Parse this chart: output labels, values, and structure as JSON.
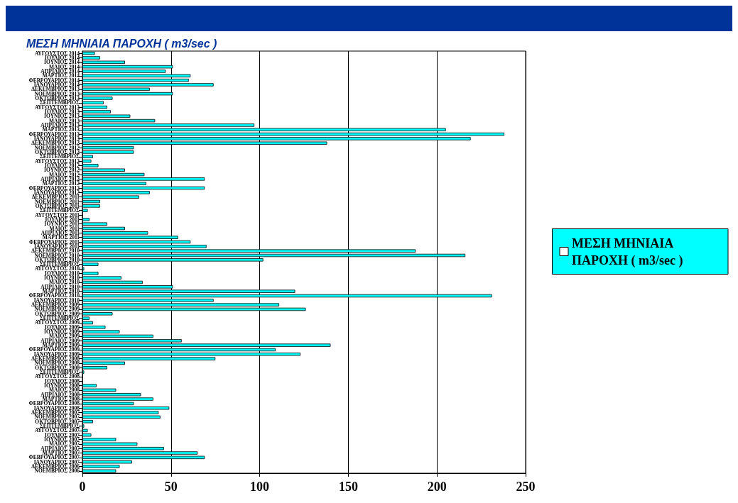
{
  "chart_data": {
    "type": "bar",
    "orientation": "horizontal",
    "title": "ΜΕΣΗ ΜΗΝΙΑΙΑ ΠΑΡΟΧΗ ( m3/sec )",
    "categories": [
      "ΑΥΓΟΥΣΤΟΣ 2014",
      "ΙΟΥΛΙΟΣ 2014",
      "ΙΟΥΝΙΟΣ 2014",
      "ΜΑΙΟΣ 2014",
      "ΑΠΡΙΛΙΟΣ 2014",
      "ΜΑΡΤΙΟΣ 2014",
      "ΦΕΒΡΟΥΑΡΙΟΣ 2014",
      "ΙΑΝΟΥΑΡΙΟΣ 2014",
      "ΔΕΚΕΜΒΡΙΟΣ 2013",
      "ΝΟΕΜΒΡΙΟΣ 2013",
      "ΟΚΤΩΒΡΙΟΣ 2013",
      "ΣΕΠΤΕΜΒΡΙΟΣ",
      "ΑΥΓΟΥΣΤΟΣ 2013",
      "ΙΟΥΛΙΟΣ 2013",
      "ΙΟΥΝΙΟΣ 2013",
      "ΜΑΙΟΣ 2013",
      "ΑΠΡΙΛΙΟΣ 2013",
      "ΜΑΡΤΙΟΣ 2013",
      "ΦΕΒΡΟΥΑΡΙΟΣ 2013",
      "ΙΑΝΟΥΑΡΙΟΣ 2013",
      "ΔΕΚΕΜΒΡΙΟΣ 2012",
      "ΝΟΕΜΒΡΙΟΣ 2012",
      "ΟΚΤΩΒΡΙΟΣ 2012",
      "ΣΕΠΤΕΜΒΡΙΟΣ",
      "ΑΥΓΟΥΣΤΟΣ 2012",
      "ΙΟΥΛΙΟΣ 2012",
      "ΙΟΥΝΙΟΣ 2012",
      "ΜΑΙΟΣ 2012",
      "ΑΠΡΙΛΙΟΣ 2012",
      "ΜΑΡΤΙΟΣ 2012",
      "ΦΕΒΡΟΥΑΡΙΟΣ 2012",
      "ΙΑΝΟΥΑΡΙΟΣ 2012",
      "ΔΕΚΕΜΒΡΙΟΣ 2011",
      "ΝΟΕΜΒΡΙΟΣ 2011",
      "ΟΚΤΩΒΡΙΟΣ 2011",
      "ΣΕΠΤΕΜΒΡΙΟΣ",
      "ΑΥΓΟΥΣΤΟΣ 2011",
      "ΙΟΥΛΙΟΣ 2011",
      "ΙΟΥΝΙΟΣ 2011",
      "ΜΑΙΟΣ 2011",
      "ΑΠΡΙΛΙΟΣ 2011",
      "ΜΑΡΤΙΟΣ 2011",
      "ΦΕΒΡΟΥΑΡΙΟΣ 2011",
      "ΙΑΝΟΥΑΡΙΟΣ 2011",
      "ΔΕΚΕΜΒΡΙΟΣ 2010",
      "ΝΟΕΜΒΡΙΟΣ 2010",
      "ΟΚΤΩΒΡΙΟΣ 2010",
      "ΣΕΠΤΕΜΒΡΙΟΣ",
      "ΑΥΓΟΥΣΤΟΣ 2010",
      "ΙΟΥΛΙΟΣ 2010",
      "ΙΟΥΝΙΟΣ 2010",
      "ΜΑΙΟΣ 2010",
      "ΑΠΡΙΛΙΟΣ 2010",
      "ΜΑΡΤΙΟΣ 2010",
      "ΦΕΒΡΟΥΑΡΙΟΣ 2010",
      "ΙΑΝΟΥΑΡΙΟΣ 2010",
      "ΔΕΚΕΜΒΡΙΟΣ 2009",
      "ΝΟΕΜΒΡΙΟΣ 2009",
      "ΟΚΤΩΒΡΙΟΣ 2009",
      "ΣΕΠΤΕΜΒΡΙΟΣ",
      "ΑΥΓΟΥΣΤΟΣ 2009",
      "ΙΟΥΛΙΟΣ 2009",
      "ΙΟΥΝΙΟΣ 2009",
      "ΜΑΙΟΣ 2009",
      "ΑΠΡΙΛΙΟΣ 2009",
      "ΜΑΡΤΙΟΣ 2009",
      "ΦΕΒΡΟΥΑΡΙΟΣ 2009",
      "ΙΑΝΟΥΑΡΙΟΣ 2009",
      "ΔΕΚΕΜΒΡΙΟΣ 2008",
      "ΝΟΕΜΒΡΙΟΣ 2008",
      "ΟΚΤΩΒΡΙΟΣ 2008",
      "ΣΕΠΤΕΜΒΡΙΟΣ",
      "ΑΥΓΟΥΣΤΟΣ 2008",
      "ΙΟΥΛΙΟΣ 2008",
      "ΙΟΥΝΙΟΣ 2008",
      "ΜΑΙΟΣ 2008",
      "ΑΠΡΙΛΙΟΣ 2008",
      "ΜΑΡΤΙΟΣ 2008",
      "ΦΕΒΡΟΥΑΡΙΟΣ 2008",
      "ΙΑΝΟΥΑΡΙΟΣ 2008",
      "ΔΕΚΕΜΒΡΙΟΣ 2007",
      "ΝΟΕΜΒΡΙΟΣ 2007",
      "ΟΚΤΩΒΡΙΟΣ 2007",
      "ΣΕΠΤΕΜΒΡΙΟΣ",
      "ΑΥΓΟΥΣΤΟΣ 2007",
      "ΙΟΥΛΙΟΣ 2007",
      "ΙΟΥΝΙΟΣ 2007",
      "ΜΑΙΟΣ 2007",
      "ΑΠΡΙΛΙΟΣ 2007",
      "ΜΑΡΤΙΟΣ 2007",
      "ΦΕΒΡΟΥΑΡΙΟΣ 2007",
      "ΙΑΝΟΥΑΡΙΟΣ 2007",
      "ΔΕΚΕΜΒΡΙΟΣ 2006",
      "ΝΟΕΜΒΡΙΟΣ 2006"
    ],
    "series": [
      {
        "name": "ΜΕΣΗ ΜΗΝΙΑΙΑ ΠΑΡΟΧΗ ( m3/sec )",
        "color": "#00ffff",
        "values": [
          7,
          10,
          24,
          51,
          47,
          61,
          60,
          74,
          38,
          51,
          17,
          12,
          14,
          16,
          27,
          41,
          97,
          205,
          238,
          219,
          138,
          29,
          29,
          6,
          5,
          9,
          24,
          35,
          69,
          36,
          69,
          38,
          32,
          10,
          10,
          3,
          0,
          4,
          14,
          24,
          37,
          54,
          61,
          70,
          188,
          216,
          102,
          9,
          1,
          9,
          22,
          34,
          51,
          120,
          231,
          74,
          111,
          126,
          17,
          4,
          6,
          13,
          21,
          40,
          56,
          140,
          109,
          123,
          75,
          24,
          14,
          1,
          0,
          0,
          8,
          19,
          33,
          40,
          29,
          49,
          43,
          44,
          6,
          1,
          3,
          5,
          19,
          31,
          46,
          65,
          69,
          28,
          21,
          19
        ]
      }
    ],
    "xlim": [
      0,
      250
    ],
    "xticks": [
      0,
      50,
      100,
      150,
      200,
      250
    ],
    "grid": "x",
    "legend": "right"
  }
}
